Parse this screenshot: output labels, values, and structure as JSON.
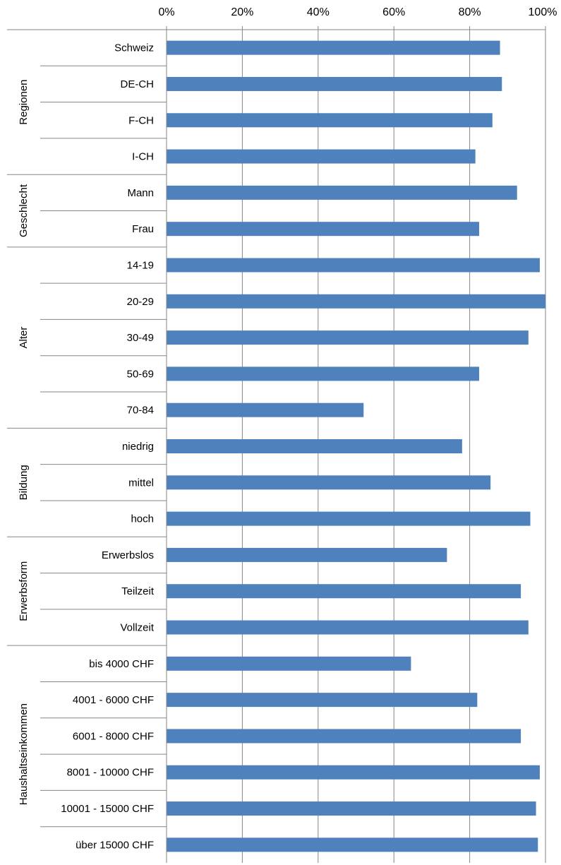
{
  "chart_data": {
    "type": "bar",
    "orientation": "horizontal",
    "x_ticks": [
      "0%",
      "20%",
      "40%",
      "60%",
      "80%",
      "100%"
    ],
    "xlim": [
      0,
      100
    ],
    "x_axis_position": "top",
    "grid": true,
    "legend": "none",
    "bar_color": "#4f81bd",
    "groups": [
      {
        "label": "Regionen",
        "start": 0,
        "count": 4
      },
      {
        "label": "Geschlecht",
        "start": 4,
        "count": 2
      },
      {
        "label": "Alter",
        "start": 6,
        "count": 5
      },
      {
        "label": "Bildung",
        "start": 11,
        "count": 3
      },
      {
        "label": "Erwerbsform",
        "start": 14,
        "count": 3
      },
      {
        "label": "Haushaltseinkommen",
        "start": 17,
        "count": 6
      }
    ],
    "categories": [
      "Schweiz",
      "DE-CH",
      "F-CH",
      "I-CH",
      "Mann",
      "Frau",
      "14-19",
      "20-29",
      "30-49",
      "50-69",
      "70-84",
      "niedrig",
      "mittel",
      "hoch",
      "Erwerbslos",
      "Teilzeit",
      "Vollzeit",
      "bis 4000  CHF",
      "4001 - 6000 CHF",
      "6001 - 8000 CHF",
      "8001 - 10000  CHF",
      "10001 - 15000 CHF",
      "über 15000  CHF"
    ],
    "values": [
      88,
      88.5,
      86,
      81.5,
      92.5,
      82.5,
      98.5,
      100,
      95.5,
      82.5,
      52,
      78,
      85.5,
      96,
      74,
      93.5,
      95.5,
      64.5,
      82,
      93.5,
      98.5,
      97.5,
      98
    ]
  }
}
